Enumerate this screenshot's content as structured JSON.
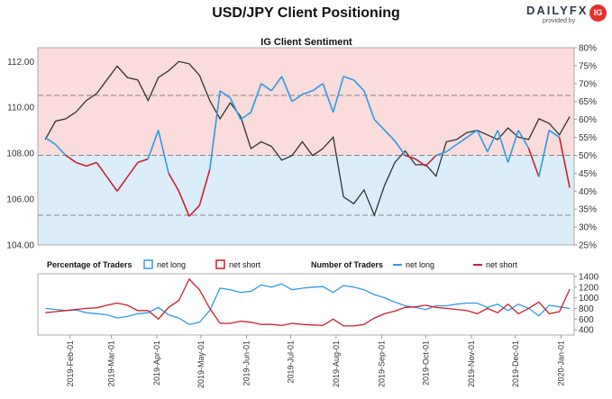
{
  "title": "USD/JPY Client Positioning",
  "brand": {
    "name_part1": "DAILY",
    "name_part2": "FX",
    "provided_by": "provided by",
    "badge": "IG"
  },
  "colors": {
    "net_long": "#2e9be3",
    "net_short": "#cc1f2c",
    "price": "#333333",
    "bg_top": "#fadcdc",
    "bg_bottom": "#dcedfa"
  },
  "chart_data": {
    "type": "line",
    "main_panel": {
      "title": "IG Client Sentiment",
      "price_axis": {
        "ticks": [
          "112.00",
          "110.00",
          "108.00",
          "106.00",
          "104.00"
        ],
        "values": [
          112,
          110,
          108,
          106,
          104
        ],
        "range": [
          104,
          112.6
        ]
      },
      "sentiment_axis": {
        "ticks": [
          "80%",
          "75%",
          "70%",
          "65%",
          "60%",
          "55%",
          "50%",
          "45%",
          "40%",
          "35%",
          "30%",
          "25%"
        ],
        "values": [
          80,
          75,
          70,
          65,
          60,
          55,
          50,
          45,
          40,
          35,
          30,
          25
        ],
        "range": [
          25,
          80
        ]
      },
      "reference_lines_pct": [
        66.7,
        50,
        33.3
      ],
      "price_series": {
        "name": "USD/JPY",
        "dates": [
          "2019-01-15",
          "2019-01-22",
          "2019-01-29",
          "2019-02-05",
          "2019-02-12",
          "2019-02-19",
          "2019-02-26",
          "2019-03-05",
          "2019-03-12",
          "2019-03-19",
          "2019-03-26",
          "2019-04-02",
          "2019-04-09",
          "2019-04-16",
          "2019-04-23",
          "2019-04-30",
          "2019-05-07",
          "2019-05-14",
          "2019-05-21",
          "2019-05-28",
          "2019-06-04",
          "2019-06-11",
          "2019-06-18",
          "2019-06-25",
          "2019-07-02",
          "2019-07-09",
          "2019-07-16",
          "2019-07-23",
          "2019-07-30",
          "2019-08-06",
          "2019-08-13",
          "2019-08-20",
          "2019-08-27",
          "2019-09-03",
          "2019-09-10",
          "2019-09-17",
          "2019-09-24",
          "2019-10-01",
          "2019-10-08",
          "2019-10-15",
          "2019-10-22",
          "2019-10-29",
          "2019-11-05",
          "2019-11-12",
          "2019-11-19",
          "2019-11-26",
          "2019-12-03",
          "2019-12-10",
          "2019-12-17",
          "2019-12-24",
          "2019-12-31",
          "2020-01-07"
        ],
        "values": [
          108.6,
          109.4,
          109.5,
          109.8,
          110.3,
          110.6,
          111.2,
          111.8,
          111.3,
          111.2,
          110.3,
          111.3,
          111.6,
          112.0,
          111.9,
          111.4,
          110.3,
          109.5,
          110.2,
          109.6,
          108.2,
          108.5,
          108.3,
          107.7,
          107.9,
          108.5,
          107.9,
          108.2,
          108.7,
          106.1,
          105.8,
          106.4,
          105.3,
          106.6,
          107.6,
          108.1,
          107.5,
          107.5,
          107.0,
          108.5,
          108.6,
          108.9,
          109.0,
          108.8,
          108.6,
          109.1,
          108.7,
          108.6,
          109.5,
          109.3,
          108.8,
          109.6
        ]
      },
      "sentiment_series": {
        "name": "net long %",
        "dates": [
          "2019-01-15",
          "2019-01-22",
          "2019-01-29",
          "2019-02-05",
          "2019-02-12",
          "2019-02-19",
          "2019-02-26",
          "2019-03-05",
          "2019-03-12",
          "2019-03-19",
          "2019-03-26",
          "2019-04-02",
          "2019-04-09",
          "2019-04-16",
          "2019-04-23",
          "2019-04-30",
          "2019-05-07",
          "2019-05-14",
          "2019-05-21",
          "2019-05-28",
          "2019-06-04",
          "2019-06-11",
          "2019-06-18",
          "2019-06-25",
          "2019-07-02",
          "2019-07-09",
          "2019-07-16",
          "2019-07-23",
          "2019-07-30",
          "2019-08-06",
          "2019-08-13",
          "2019-08-20",
          "2019-08-27",
          "2019-09-03",
          "2019-09-10",
          "2019-09-17",
          "2019-09-24",
          "2019-10-01",
          "2019-10-08",
          "2019-10-15",
          "2019-10-22",
          "2019-10-29",
          "2019-11-05",
          "2019-11-12",
          "2019-11-19",
          "2019-11-26",
          "2019-12-03",
          "2019-12-10",
          "2019-12-17",
          "2019-12-24",
          "2019-12-31",
          "2020-01-07"
        ],
        "values": [
          55,
          53,
          50,
          48,
          47,
          48,
          44,
          40,
          44,
          48,
          49,
          57,
          45,
          40,
          33,
          36,
          46,
          68,
          66,
          60,
          62,
          70,
          68,
          72,
          65,
          67,
          68,
          70,
          62,
          72,
          71,
          68,
          60,
          57,
          54,
          50,
          49,
          47,
          50,
          51,
          53,
          55,
          57,
          51,
          57,
          48,
          57,
          52,
          44,
          57,
          55,
          41
        ]
      }
    },
    "lower_panel": {
      "legend": {
        "percentage_head": "Percentage of Traders",
        "pct_long": "net long",
        "pct_short": "net short",
        "number_head": "Number of Traders",
        "num_long": "net long",
        "num_short": "net short"
      },
      "axis": {
        "ticks": [
          "1400",
          "1200",
          "1000",
          "800",
          "600",
          "400"
        ],
        "values": [
          1400,
          1200,
          1000,
          800,
          600,
          400
        ],
        "range": [
          300,
          1450
        ]
      },
      "series": [
        {
          "name": "net long",
          "values": [
            800,
            780,
            760,
            770,
            720,
            700,
            680,
            620,
            650,
            700,
            720,
            820,
            680,
            620,
            500,
            540,
            760,
            1180,
            1150,
            1100,
            1120,
            1240,
            1200,
            1260,
            1150,
            1180,
            1200,
            1210,
            1100,
            1230,
            1200,
            1150,
            1060,
            1000,
            920,
            850,
            820,
            780,
            850,
            850,
            880,
            900,
            900,
            820,
            880,
            760,
            880,
            800,
            660,
            860,
            830,
            800
          ]
        },
        {
          "name": "net short",
          "values": [
            720,
            740,
            760,
            780,
            800,
            810,
            860,
            900,
            860,
            760,
            760,
            600,
            820,
            950,
            1350,
            1150,
            800,
            520,
            520,
            560,
            540,
            500,
            500,
            480,
            520,
            500,
            490,
            480,
            600,
            470,
            470,
            500,
            620,
            700,
            750,
            820,
            830,
            860,
            820,
            800,
            780,
            760,
            700,
            800,
            720,
            880,
            700,
            800,
            920,
            700,
            740,
            1160
          ]
        }
      ],
      "dates": [
        "2019-01-15",
        "2019-01-22",
        "2019-01-29",
        "2019-02-05",
        "2019-02-12",
        "2019-02-19",
        "2019-02-26",
        "2019-03-05",
        "2019-03-12",
        "2019-03-19",
        "2019-03-26",
        "2019-04-02",
        "2019-04-09",
        "2019-04-16",
        "2019-04-23",
        "2019-04-30",
        "2019-05-07",
        "2019-05-14",
        "2019-05-21",
        "2019-05-28",
        "2019-06-04",
        "2019-06-11",
        "2019-06-18",
        "2019-06-25",
        "2019-07-02",
        "2019-07-09",
        "2019-07-16",
        "2019-07-23",
        "2019-07-30",
        "2019-08-06",
        "2019-08-13",
        "2019-08-20",
        "2019-08-27",
        "2019-09-03",
        "2019-09-10",
        "2019-09-17",
        "2019-09-24",
        "2019-10-01",
        "2019-10-08",
        "2019-10-15",
        "2019-10-22",
        "2019-10-29",
        "2019-11-05",
        "2019-11-12",
        "2019-11-19",
        "2019-11-26",
        "2019-12-03",
        "2019-12-10",
        "2019-12-17",
        "2019-12-24",
        "2019-12-31",
        "2020-01-07"
      ]
    },
    "x_axis": {
      "range": [
        "2019-01-10",
        "2020-01-10"
      ],
      "ticks": [
        "2019-Feb-01",
        "2019-Mar-01",
        "2019-Apr-01",
        "2019-May-01",
        "2019-Jun-01",
        "2019-Jul-01",
        "2019-Aug-01",
        "2019-Sep-01",
        "2019-Oct-01",
        "2019-Nov-01",
        "2019-Dec-01",
        "2020-Jan-01"
      ],
      "tick_dates": [
        "2019-02-01",
        "2019-03-01",
        "2019-04-01",
        "2019-05-01",
        "2019-06-01",
        "2019-07-01",
        "2019-08-01",
        "2019-09-01",
        "2019-10-01",
        "2019-11-01",
        "2019-12-01",
        "2020-01-01"
      ]
    }
  }
}
